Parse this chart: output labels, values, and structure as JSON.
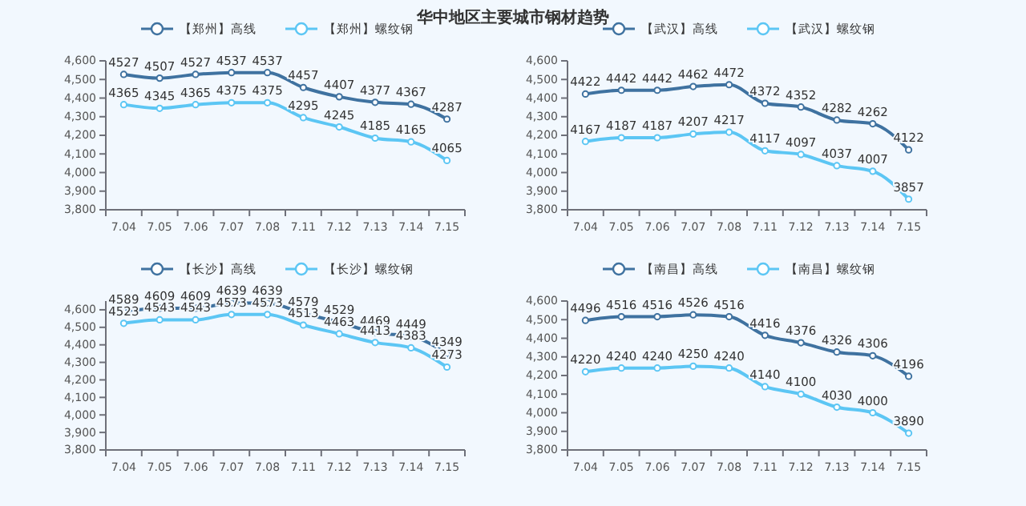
{
  "chart_data": [
    {
      "type": "line",
      "title": "华中地区主要城市钢材趋势",
      "categories": [
        "7.04",
        "7.05",
        "7.06",
        "7.07",
        "7.08",
        "7.11",
        "7.12",
        "7.13",
        "7.14",
        "7.15"
      ],
      "ylim": [
        3800,
        4600
      ],
      "yticks": [
        {
          "value": 3800,
          "label": "3,800"
        },
        {
          "value": 3900,
          "label": "3,900"
        },
        {
          "value": 4000,
          "label": "4,000"
        },
        {
          "value": 4100,
          "label": "4,100"
        },
        {
          "value": 4200,
          "label": "4,200"
        },
        {
          "value": 4300,
          "label": "4,300"
        },
        {
          "value": 4400,
          "label": "4,400"
        },
        {
          "value": 4500,
          "label": "4,500"
        },
        {
          "value": 4600,
          "label": "4,600"
        }
      ],
      "legend": "top",
      "marker": "circle",
      "data_labels": true,
      "grid": false,
      "series": [
        {
          "name": "【郑州】高线",
          "color": "#3f72a0",
          "values": [
            4527,
            4507,
            4527,
            4537,
            4537,
            4457,
            4407,
            4377,
            4367,
            4287
          ]
        },
        {
          "name": "【郑州】螺纹钢",
          "color": "#5cc6f4",
          "values": [
            4365,
            4345,
            4365,
            4375,
            4375,
            4295,
            4245,
            4185,
            4165,
            4065
          ]
        }
      ]
    },
    {
      "type": "line",
      "categories": [
        "7.04",
        "7.05",
        "7.06",
        "7.07",
        "7.08",
        "7.11",
        "7.12",
        "7.13",
        "7.14",
        "7.15"
      ],
      "ylim": [
        3800,
        4600
      ],
      "yticks": [
        {
          "value": 3800,
          "label": "3,800"
        },
        {
          "value": 3900,
          "label": "3,900"
        },
        {
          "value": 4000,
          "label": "4,000"
        },
        {
          "value": 4100,
          "label": "4,100"
        },
        {
          "value": 4200,
          "label": "4,200"
        },
        {
          "value": 4300,
          "label": "4,300"
        },
        {
          "value": 4400,
          "label": "4,400"
        },
        {
          "value": 4500,
          "label": "4,500"
        },
        {
          "value": 4600,
          "label": "4,600"
        }
      ],
      "legend": "top",
      "marker": "circle",
      "data_labels": true,
      "grid": false,
      "series": [
        {
          "name": "【武汉】高线",
          "color": "#3f72a0",
          "values": [
            4422,
            4442,
            4442,
            4462,
            4472,
            4372,
            4352,
            4282,
            4262,
            4122
          ]
        },
        {
          "name": "【武汉】螺纹钢",
          "color": "#5cc6f4",
          "values": [
            4167,
            4187,
            4187,
            4207,
            4217,
            4117,
            4097,
            4037,
            4007,
            3857
          ]
        }
      ]
    },
    {
      "type": "line",
      "categories": [
        "7.04",
        "7.05",
        "7.06",
        "7.07",
        "7.08",
        "7.11",
        "7.12",
        "7.13",
        "7.14",
        "7.15"
      ],
      "ylim": [
        3800,
        4650
      ],
      "yticks": [
        {
          "value": 3800,
          "label": "3,800"
        },
        {
          "value": 3900,
          "label": "3,900"
        },
        {
          "value": 4000,
          "label": "4,000"
        },
        {
          "value": 4100,
          "label": "4,100"
        },
        {
          "value": 4200,
          "label": "4,200"
        },
        {
          "value": 4300,
          "label": "4,300"
        },
        {
          "value": 4400,
          "label": "4,400"
        },
        {
          "value": 4500,
          "label": "4,500"
        },
        {
          "value": 4600,
          "label": "4,600"
        }
      ],
      "legend": "top",
      "marker": "circle",
      "data_labels": true,
      "grid": false,
      "series": [
        {
          "name": "【长沙】高线",
          "color": "#3f72a0",
          "values": [
            4589,
            4609,
            4609,
            4639,
            4639,
            4579,
            4529,
            4469,
            4449,
            4349
          ]
        },
        {
          "name": "【长沙】螺纹钢",
          "color": "#5cc6f4",
          "values": [
            4523,
            4543,
            4543,
            4573,
            4573,
            4513,
            4463,
            4413,
            4383,
            4273
          ]
        }
      ]
    },
    {
      "type": "line",
      "categories": [
        "7.04",
        "7.05",
        "7.06",
        "7.07",
        "7.08",
        "7.11",
        "7.12",
        "7.13",
        "7.14",
        "7.15"
      ],
      "ylim": [
        3800,
        4600
      ],
      "yticks": [
        {
          "value": 3800,
          "label": "3,800"
        },
        {
          "value": 3900,
          "label": "3,900"
        },
        {
          "value": 4000,
          "label": "4,000"
        },
        {
          "value": 4100,
          "label": "4,100"
        },
        {
          "value": 4200,
          "label": "4,200"
        },
        {
          "value": 4300,
          "label": "4,300"
        },
        {
          "value": 4400,
          "label": "4,400"
        },
        {
          "value": 4500,
          "label": "4,500"
        },
        {
          "value": 4600,
          "label": "4,600"
        }
      ],
      "legend": "top",
      "marker": "circle",
      "data_labels": true,
      "grid": false,
      "series": [
        {
          "name": "【南昌】高线",
          "color": "#3f72a0",
          "values": [
            4496,
            4516,
            4516,
            4526,
            4516,
            4416,
            4376,
            4326,
            4306,
            4196
          ]
        },
        {
          "name": "【南昌】螺纹钢",
          "color": "#5cc6f4",
          "values": [
            4220,
            4240,
            4240,
            4250,
            4240,
            4140,
            4100,
            4030,
            4000,
            3890
          ]
        }
      ]
    }
  ]
}
